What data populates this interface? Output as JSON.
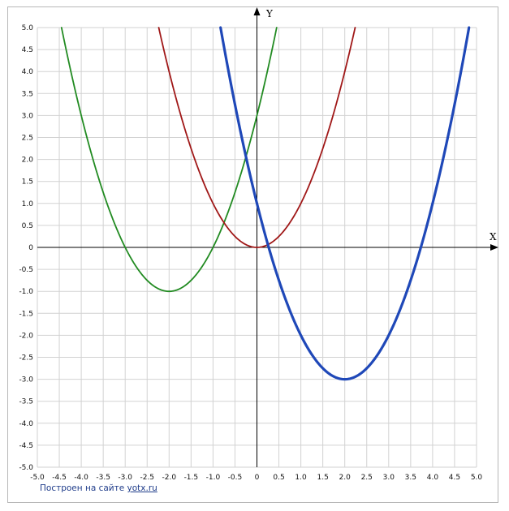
{
  "chart_data": {
    "type": "line",
    "xlabel": "X",
    "ylabel": "Y",
    "xlim": [
      -5,
      5
    ],
    "ylim": [
      -5,
      5
    ],
    "grid": true,
    "tick_step": 0.5,
    "x_ticks": [
      "-5.0",
      "-4.5",
      "-4.0",
      "-3.5",
      "-3.0",
      "-2.5",
      "-2.0",
      "-1.5",
      "-1.0",
      "-0.5",
      "0",
      "0.5",
      "1.0",
      "1.5",
      "2.0",
      "2.5",
      "3.0",
      "3.5",
      "4.0",
      "4.5",
      "5.0"
    ],
    "y_ticks": [
      "5.0",
      "4.5",
      "4.0",
      "3.5",
      "3.0",
      "2.5",
      "2.0",
      "1.5",
      "1.0",
      "0.5",
      "0",
      "-0.5",
      "-1.0",
      "-1.5",
      "-2.0",
      "-2.5",
      "-3.0",
      "-3.5",
      "-4.0",
      "-4.5",
      "-5.0"
    ],
    "series": [
      {
        "color": "#228b22",
        "vertex": [
          -2,
          -1
        ],
        "a": 1,
        "points": [
          [
            -4.45,
            5.0
          ],
          [
            -3,
            0
          ],
          [
            -2,
            -1
          ],
          [
            -1,
            0
          ],
          [
            0,
            3
          ],
          [
            0.45,
            5.0
          ]
        ]
      },
      {
        "color": "#a01818",
        "vertex": [
          0,
          0
        ],
        "a": 1,
        "points": [
          [
            -2.24,
            5.0
          ],
          [
            -1,
            1
          ],
          [
            0,
            0
          ],
          [
            1,
            1
          ],
          [
            2.24,
            5.0
          ]
        ]
      },
      {
        "color": "#1f48b8",
        "vertex": [
          2,
          -3
        ],
        "a": 1,
        "points": [
          [
            -0.83,
            5.0
          ],
          [
            0,
            1
          ],
          [
            0.27,
            0
          ],
          [
            2,
            -3
          ],
          [
            3.73,
            0
          ],
          [
            4.83,
            5.0
          ]
        ]
      }
    ]
  },
  "footer": {
    "credit_text": "Построен на сайте ",
    "credit_link": "yotx.ru"
  }
}
